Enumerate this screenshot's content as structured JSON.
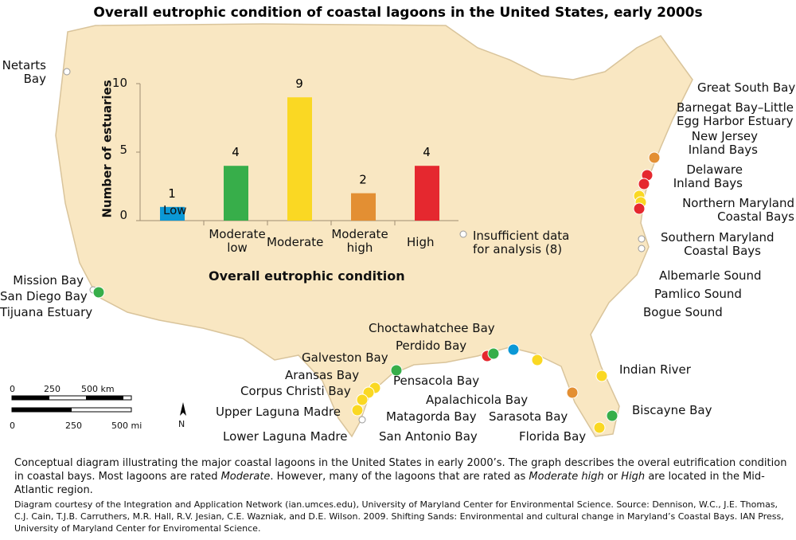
{
  "title": "Overall eutrophic condition of coastal lagoons in the United States, early 2000s",
  "colors": {
    "low": "#0b98d6",
    "moderate_low": "#37ae4a",
    "moderate": "#fad823",
    "moderate_high": "#e38f33",
    "high": "#e5282f",
    "insufficient": "#ffffff",
    "land": "#f9e7c2"
  },
  "chart_data": {
    "type": "bar",
    "categories": [
      "Low",
      "Moderate low",
      "Moderate",
      "Moderate high",
      "High"
    ],
    "values": [
      1,
      4,
      9,
      2,
      4
    ],
    "xlabel": "Overall eutrophic condition",
    "ylabel": "Number of estuaries",
    "ylim": [
      0,
      10
    ],
    "yticks": [
      "0",
      "5",
      "10"
    ],
    "grid": false
  },
  "legend": {
    "insufficient": "Insufficient data",
    "insufficient2": "for analysis (8)"
  },
  "sites": [
    "Netarts",
    "Bay",
    "Mission Bay",
    "San Diego Bay",
    "Tijuana Estuary",
    "Great South Bay",
    "Barnegat Bay–Little",
    "Egg Harbor Estuary",
    "New Jersey",
    "Inland Bays",
    "Delaware",
    "Inland Bays",
    "Northern Maryland",
    "Coastal Bays",
    "Southern Maryland",
    "Coastal Bays",
    "Albemarle Sound",
    "Pamlico Sound",
    "Bogue Sound",
    "Choctawhatchee Bay",
    "Perdido Bay",
    "Galveston Bay",
    "Aransas Bay",
    "Corpus Christi Bay",
    "Upper Laguna Madre",
    "Lower Laguna Madre",
    "Matagorda Bay",
    "San Antonio Bay",
    "Pensacola Bay",
    "Apalachicola Bay",
    "Sarasota Bay",
    "Florida Bay",
    "Indian River",
    "Biscayne Bay"
  ],
  "scale": {
    "km": [
      "0",
      "250",
      "500 km"
    ],
    "mi": [
      "0",
      "250",
      "500 mi"
    ],
    "north": "N"
  },
  "caption": {
    "p1": "Conceptual diagram illustrating the major coastal lagoons in the United States in early 2000’s. The graph describes the overal eutrification condition in coastal bays. Most lagoons are rated ",
    "p1_em1": "Moderate",
    "p1b": ". However, many of the lagoons that are rated as ",
    "p1_em2": "Moderate high",
    "p1c": " or ",
    "p1_em3": "High",
    "p1d": " are located  in the Mid-Atlantic region.",
    "p2": "Diagram courtesy of the Integration and Application Network (ian.umces.edu), University of Maryland Center for Environmental Science. Source: Dennison, W.C., J.E. Thomas, C.J. Cain, T.J.B. Carruthers, M.R. Hall, R.V. Jesian, C.E. Wazniak, and D.E. Wilson. 2009. Shifting Sands: Environmental and cultural change in Maryland’s Coastal Bays. IAN Press, University of Maryland Center for Enviromental Science."
  }
}
